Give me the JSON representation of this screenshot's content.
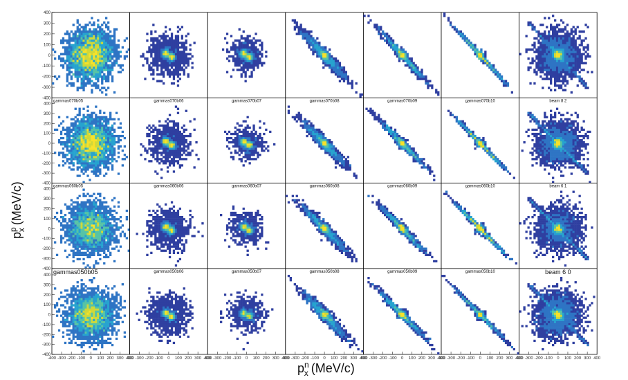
{
  "chart_data": {
    "type": "heatmap",
    "layout": {
      "rows": 4,
      "cols": 7
    },
    "axis_range": [
      -400,
      400
    ],
    "x_ticks": [
      -400,
      -300,
      -200,
      -100,
      0,
      100,
      200,
      300,
      400
    ],
    "y_ticks": [
      -400,
      -300,
      -200,
      -100,
      0,
      100,
      200,
      300,
      400
    ],
    "xlabel": {
      "symbol": "p",
      "sup": "n",
      "sub": "x",
      "unit": "(MeV/c)"
    },
    "ylabel": {
      "symbol": "p",
      "sup": "p",
      "sub": "x",
      "unit": "(MeV/c)"
    },
    "colormap": [
      "#2f3fa0",
      "#2e74c4",
      "#27a3cf",
      "#57c3a6",
      "#cfd83a",
      "#f7e12a"
    ],
    "panels": [
      {
        "row": 0,
        "col": 0,
        "label": "",
        "kind": "uniform",
        "count": 2600,
        "spread": 120
      },
      {
        "row": 0,
        "col": 1,
        "label": "",
        "kind": "twoblob",
        "count": 3000,
        "spread": 95,
        "sep": 30
      },
      {
        "row": 0,
        "col": 2,
        "label": "",
        "kind": "twoblob",
        "count": 1600,
        "spread": 80,
        "sep": 28
      },
      {
        "row": 0,
        "col": 3,
        "label": "",
        "kind": "diag",
        "count": 1300,
        "length": 115,
        "width": 22
      },
      {
        "row": 0,
        "col": 4,
        "label": "",
        "kind": "diag",
        "count": 1000,
        "length": 120,
        "width": 14
      },
      {
        "row": 0,
        "col": 5,
        "label": "",
        "kind": "diag",
        "count": 800,
        "length": 125,
        "width": 8
      },
      {
        "row": 0,
        "col": 6,
        "label": "",
        "kind": "blobline",
        "count": 3200,
        "spread": 110,
        "line": 0.08
      },
      {
        "row": 1,
        "col": 0,
        "label": "gammas070b05",
        "kind": "uniform",
        "count": 2600,
        "spread": 120
      },
      {
        "row": 1,
        "col": 1,
        "label": "gammas070b06",
        "kind": "twoblob",
        "count": 3000,
        "spread": 95,
        "sep": 30
      },
      {
        "row": 1,
        "col": 2,
        "label": "gammas070b07",
        "kind": "twoblob",
        "count": 1600,
        "spread": 80,
        "sep": 28
      },
      {
        "row": 1,
        "col": 3,
        "label": "gammas070b08",
        "kind": "diag",
        "count": 1300,
        "length": 115,
        "width": 22
      },
      {
        "row": 1,
        "col": 4,
        "label": "gammas070b09",
        "kind": "diag",
        "count": 1000,
        "length": 120,
        "width": 14
      },
      {
        "row": 1,
        "col": 5,
        "label": "gammas070b10",
        "kind": "diag",
        "count": 800,
        "length": 125,
        "width": 8
      },
      {
        "row": 1,
        "col": 6,
        "label": "beam 8 2",
        "kind": "blobline",
        "count": 3200,
        "spread": 110,
        "line": 0.15
      },
      {
        "row": 2,
        "col": 0,
        "label": "gammas060b05",
        "kind": "uniform",
        "count": 2600,
        "spread": 120
      },
      {
        "row": 2,
        "col": 1,
        "label": "gammas060b06",
        "kind": "twoblob",
        "count": 3000,
        "spread": 95,
        "sep": 30
      },
      {
        "row": 2,
        "col": 2,
        "label": "gammas060b07",
        "kind": "twoblob",
        "count": 1600,
        "spread": 80,
        "sep": 28
      },
      {
        "row": 2,
        "col": 3,
        "label": "gammas060b08",
        "kind": "diag",
        "count": 1300,
        "length": 115,
        "width": 22
      },
      {
        "row": 2,
        "col": 4,
        "label": "gammas060b09",
        "kind": "diag",
        "count": 1000,
        "length": 120,
        "width": 14
      },
      {
        "row": 2,
        "col": 5,
        "label": "gammas060b10",
        "kind": "diag",
        "count": 800,
        "length": 125,
        "width": 8
      },
      {
        "row": 2,
        "col": 6,
        "label": "beam 6 1",
        "kind": "blobline",
        "count": 3200,
        "spread": 110,
        "line": 0.2
      },
      {
        "row": 3,
        "col": 0,
        "label": "gammas050b05",
        "kind": "uniform",
        "count": 2800,
        "spread": 120,
        "big": true
      },
      {
        "row": 3,
        "col": 1,
        "label": "gammas050b06",
        "kind": "twoblob",
        "count": 3200,
        "spread": 95,
        "sep": 30
      },
      {
        "row": 3,
        "col": 2,
        "label": "gammas050b07",
        "kind": "twoblob",
        "count": 1800,
        "spread": 85,
        "sep": 28
      },
      {
        "row": 3,
        "col": 3,
        "label": "gammas050b08",
        "kind": "diag",
        "count": 1300,
        "length": 115,
        "width": 24
      },
      {
        "row": 3,
        "col": 4,
        "label": "gammas050b09",
        "kind": "diag",
        "count": 1000,
        "length": 120,
        "width": 15
      },
      {
        "row": 3,
        "col": 5,
        "label": "gammas050b10",
        "kind": "diag",
        "count": 800,
        "length": 125,
        "width": 9
      },
      {
        "row": 3,
        "col": 6,
        "label": "beam 6 0",
        "kind": "blobline",
        "count": 3400,
        "spread": 110,
        "line": 0.12,
        "big": true
      }
    ]
  }
}
